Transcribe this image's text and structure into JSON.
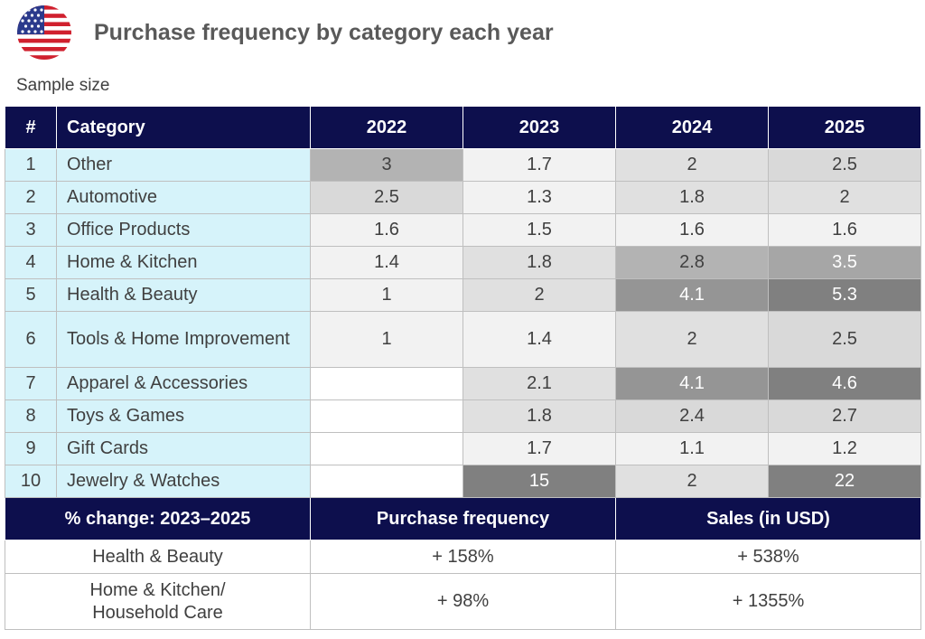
{
  "header": {
    "title": "Purchase frequency by category each year",
    "subtitle": "Sample size",
    "flag_icon": "us-flag-icon"
  },
  "table": {
    "columns": {
      "num": "#",
      "category": "Category",
      "years": [
        "2022",
        "2023",
        "2024",
        "2025"
      ]
    },
    "rows": [
      {
        "num": "1",
        "category": "Other",
        "values": [
          "3",
          "1.7",
          "2",
          "2.5"
        ]
      },
      {
        "num": "2",
        "category": "Automotive",
        "values": [
          "2.5",
          "1.3",
          "1.8",
          "2"
        ]
      },
      {
        "num": "3",
        "category": "Office Products",
        "values": [
          "1.6",
          "1.5",
          "1.6",
          "1.6"
        ]
      },
      {
        "num": "4",
        "category": "Home & Kitchen",
        "values": [
          "1.4",
          "1.8",
          "2.8",
          "3.5"
        ]
      },
      {
        "num": "5",
        "category": "Health & Beauty",
        "values": [
          "1",
          "2",
          "4.1",
          "5.3"
        ]
      },
      {
        "num": "6",
        "category": "Tools & Home Improvement",
        "values": [
          "1",
          "1.4",
          "2",
          "2.5"
        ]
      },
      {
        "num": "7",
        "category": "Apparel & Accessories",
        "values": [
          "",
          "2.1",
          "4.1",
          "4.6"
        ]
      },
      {
        "num": "8",
        "category": "Toys & Games",
        "values": [
          "",
          "1.8",
          "2.4",
          "2.7"
        ]
      },
      {
        "num": "9",
        "category": "Gift Cards",
        "values": [
          "",
          "1.7",
          "1.1",
          "1.2"
        ]
      },
      {
        "num": "10",
        "category": "Jewelry & Watches",
        "values": [
          "",
          "15",
          "2",
          "22"
        ]
      }
    ],
    "heat_colors": {
      "empty": "#ffffff",
      "low": "#f2f2f2",
      "mid": "#d9d9d9",
      "high": "#b3b3b3",
      "higher": "#a6a6a6",
      "top": "#808080"
    }
  },
  "summary": {
    "headers": [
      "% change: 2023–2025",
      "Purchase frequency",
      "Sales (in USD)"
    ],
    "rows": [
      {
        "label": "Health & Beauty",
        "frequency": "+ 158%",
        "sales": "+ 538%"
      },
      {
        "label": "Home & Kitchen/\nHousehold Care",
        "frequency": "+ 98%",
        "sales": "+ 1355%"
      }
    ]
  }
}
